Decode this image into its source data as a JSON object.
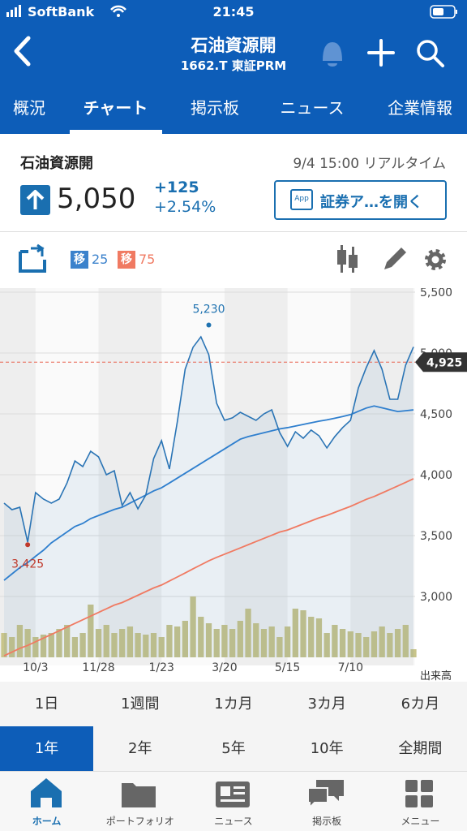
{
  "status": {
    "carrier": "SoftBank",
    "time": "21:45"
  },
  "header": {
    "title": "石油資源開",
    "code": "1662.T 東証PRM"
  },
  "tabs": [
    "概況",
    "チャート",
    "掲示板",
    "ニュース",
    "企業情報"
  ],
  "quote": {
    "name": "石油資源開",
    "datetime": "9/4 15:00 リアルタイム",
    "price": "5,050",
    "change": "+125",
    "change_pct": "+2.54%",
    "button": "証券ア…を開く",
    "button_icon": "App"
  },
  "toolbar": {
    "ma_short": {
      "badge": "移",
      "period": "25"
    },
    "ma_long": {
      "badge": "移",
      "period": "75"
    }
  },
  "chart_data": {
    "type": "line",
    "categories": [
      null,
      null,
      null,
      null,
      "10/3",
      null,
      null,
      null,
      null,
      null,
      null,
      null,
      "11/28",
      null,
      null,
      null,
      null,
      null,
      null,
      null,
      "1/23",
      null,
      null,
      null,
      null,
      null,
      null,
      null,
      "3/20",
      null,
      null,
      null,
      null,
      null,
      null,
      null,
      "5/15",
      null,
      null,
      null,
      null,
      null,
      null,
      null,
      "7/10",
      null,
      null,
      null,
      null,
      null,
      null,
      null,
      null
    ],
    "series": [
      {
        "color": "#2a74b5",
        "values": [
          3767,
          3713,
          3733,
          3447,
          3853,
          3800,
          3767,
          3800,
          3933,
          4113,
          4067,
          4193,
          4147,
          4000,
          4033,
          3747,
          3853,
          3720,
          3833,
          4133,
          4280,
          4047,
          4433,
          4867,
          5047,
          5133,
          4987,
          4587,
          4447,
          4467,
          4513,
          4480,
          4447,
          4500,
          4533,
          4347,
          4233,
          4353,
          4300,
          4367,
          4320,
          4220,
          4313,
          4387,
          4447,
          4713,
          4880,
          5020,
          4867,
          4620,
          4620,
          4900,
          5050
        ]
      },
      {
        "color": "#2f7fce",
        "values": [
          3133,
          3185,
          3237,
          3278,
          3330,
          3380,
          3440,
          3485,
          3530,
          3575,
          3600,
          3640,
          3665,
          3690,
          3715,
          3733,
          3767,
          3800,
          3833,
          3867,
          3893,
          3932,
          3972,
          4012,
          4052,
          4092,
          4132,
          4172,
          4212,
          4252,
          4292,
          4313,
          4329,
          4345,
          4361,
          4377,
          4387,
          4400,
          4413,
          4427,
          4440,
          4451,
          4464,
          4478,
          4494,
          4521,
          4548,
          4565,
          4550,
          4534,
          4519,
          4526,
          4533
        ]
      },
      {
        "color": "#f07a62",
        "values": [
          2513,
          2543,
          2574,
          2598,
          2628,
          2658,
          2688,
          2718,
          2749,
          2779,
          2809,
          2839,
          2869,
          2899,
          2929,
          2950,
          2980,
          3010,
          3040,
          3070,
          3094,
          3127,
          3160,
          3193,
          3227,
          3260,
          3293,
          3321,
          3347,
          3373,
          3399,
          3425,
          3451,
          3477,
          3503,
          3529,
          3546,
          3571,
          3596,
          3621,
          3646,
          3666,
          3691,
          3716,
          3740,
          3769,
          3798,
          3821,
          3850,
          3879,
          3908,
          3937,
          3967
        ]
      }
    ],
    "volume": {
      "label": "出来高",
      "color": "#c8c48a",
      "values": [
        30,
        25,
        40,
        35,
        25,
        28,
        30,
        35,
        40,
        25,
        30,
        65,
        35,
        40,
        30,
        35,
        38,
        30,
        28,
        30,
        25,
        40,
        38,
        45,
        75,
        50,
        42,
        35,
        40,
        35,
        45,
        60,
        42,
        35,
        38,
        25,
        38,
        60,
        58,
        50,
        48,
        30,
        40,
        35,
        32,
        30,
        25,
        32,
        38,
        30,
        35,
        40,
        10
      ]
    },
    "annotations": [
      {
        "label": "5,230",
        "value": 5230,
        "x": 26,
        "color": "#1f72b0"
      },
      {
        "label": "3,425",
        "value": 3425,
        "x": 3,
        "color": "#c0392b"
      }
    ],
    "reference": {
      "value": 4925,
      "label": "4,925",
      "color": "#e8604c"
    },
    "ylim": [
      2500,
      5500
    ],
    "yticks": [
      {
        "value": 3000,
        "label": "3,000"
      },
      {
        "value": 3500,
        "label": "3,500"
      },
      {
        "value": 4000,
        "label": "4,000"
      },
      {
        "value": 4500,
        "label": "4,500"
      },
      {
        "value": 5000,
        "label": "5,000"
      },
      {
        "value": 5500,
        "label": "5,500"
      }
    ],
    "grid": true
  },
  "periods": [
    [
      "1日",
      "1週間",
      "1カ月",
      "3カ月",
      "6カ月"
    ],
    [
      "1年",
      "2年",
      "5年",
      "10年",
      "全期間"
    ]
  ],
  "nav": [
    "ホーム",
    "ポートフォリオ",
    "ニュース",
    "掲示板",
    "メニュー"
  ]
}
